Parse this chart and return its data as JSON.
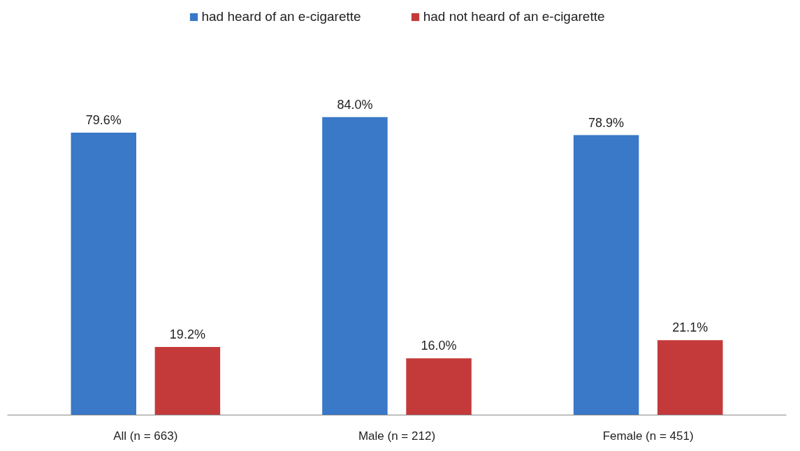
{
  "chart_data": {
    "type": "bar",
    "categories": [
      "All (n = 663)",
      "Male (n = 212)",
      "Female (n = 451)"
    ],
    "series": [
      {
        "name": "had heard of an e-cigarette",
        "color": "#3a78c8",
        "values": [
          79.6,
          84.0,
          78.9
        ],
        "value_labels": [
          "79.6%",
          "84.0%",
          "78.9%"
        ]
      },
      {
        "name": "had not heard of an e-cigarette",
        "color": "#c43a3a",
        "values": [
          19.2,
          16.0,
          21.1
        ],
        "value_labels": [
          "19.2%",
          "16.0%",
          "21.1%"
        ]
      }
    ],
    "legend": "top",
    "grid": false
  }
}
